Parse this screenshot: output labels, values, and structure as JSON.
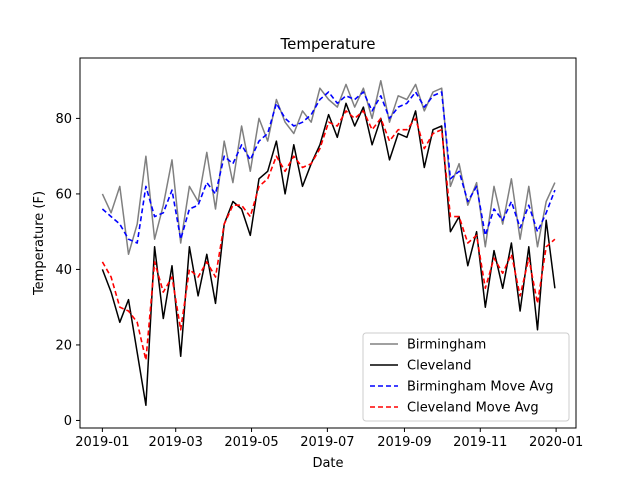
{
  "chart_data": {
    "type": "line",
    "title": "Temperature",
    "xlabel": "Date",
    "ylabel": "Temperature (F)",
    "x_ticks": [
      "2019-01",
      "2019-03",
      "2019-05",
      "2019-07",
      "2019-09",
      "2019-11",
      "2020-01"
    ],
    "y_ticks": [
      0,
      20,
      40,
      60,
      80
    ],
    "xlim": [
      "2018-12-14",
      "2020-01-17"
    ],
    "ylim": [
      -2,
      96
    ],
    "grid": false,
    "legend_position": "lower-right",
    "x": [
      "2019-01-01",
      "2019-01-08",
      "2019-01-15",
      "2019-01-22",
      "2019-01-29",
      "2019-02-05",
      "2019-02-12",
      "2019-02-19",
      "2019-02-26",
      "2019-03-05",
      "2019-03-12",
      "2019-03-19",
      "2019-03-26",
      "2019-04-02",
      "2019-04-09",
      "2019-04-16",
      "2019-04-23",
      "2019-04-30",
      "2019-05-07",
      "2019-05-14",
      "2019-05-21",
      "2019-05-28",
      "2019-06-04",
      "2019-06-11",
      "2019-06-18",
      "2019-06-25",
      "2019-07-02",
      "2019-07-09",
      "2019-07-16",
      "2019-07-23",
      "2019-07-30",
      "2019-08-06",
      "2019-08-13",
      "2019-08-20",
      "2019-08-27",
      "2019-09-03",
      "2019-09-10",
      "2019-09-17",
      "2019-09-24",
      "2019-10-01",
      "2019-10-08",
      "2019-10-15",
      "2019-10-22",
      "2019-10-29",
      "2019-11-05",
      "2019-11-12",
      "2019-11-19",
      "2019-11-26",
      "2019-12-03",
      "2019-12-10",
      "2019-12-17",
      "2019-12-24",
      "2019-12-31"
    ],
    "series": [
      {
        "name": "Birmingham",
        "color": "#808080",
        "style": "solid",
        "values": [
          60,
          55,
          62,
          44,
          52,
          70,
          48,
          57,
          69,
          47,
          62,
          58,
          71,
          56,
          74,
          63,
          78,
          66,
          80,
          74,
          85,
          79,
          76,
          82,
          79,
          88,
          85,
          83,
          89,
          83,
          88,
          80,
          90,
          79,
          86,
          85,
          89,
          82,
          87,
          88,
          62,
          68,
          57,
          63,
          46,
          62,
          52,
          64,
          48,
          62,
          46,
          58,
          63
        ]
      },
      {
        "name": "Cleveland",
        "color": "#000000",
        "style": "solid",
        "values": [
          40,
          34,
          26,
          32,
          18,
          4,
          46,
          27,
          41,
          17,
          46,
          33,
          44,
          31,
          52,
          58,
          56,
          49,
          64,
          66,
          74,
          60,
          73,
          62,
          68,
          73,
          81,
          75,
          84,
          78,
          83,
          73,
          80,
          69,
          76,
          75,
          82,
          67,
          77,
          78,
          50,
          54,
          41,
          50,
          30,
          45,
          35,
          47,
          29,
          46,
          24,
          53,
          35
        ]
      },
      {
        "name": "Birmingham Move Avg",
        "color": "#0000ff",
        "style": "dashed",
        "values": [
          56,
          54,
          52,
          48,
          47,
          62,
          54,
          55,
          61,
          48,
          56,
          57,
          63,
          60,
          70,
          68,
          73,
          69,
          74,
          76,
          84,
          80,
          78,
          79,
          81,
          85,
          87,
          84,
          86,
          85,
          87,
          82,
          86,
          80,
          83,
          84,
          87,
          83,
          86,
          87,
          64,
          66,
          58,
          62,
          49,
          56,
          53,
          58,
          51,
          57,
          50,
          55,
          61
        ]
      },
      {
        "name": "Cleveland Move Avg",
        "color": "#ff0000",
        "style": "dashed",
        "values": [
          42,
          38,
          30,
          29,
          26,
          16,
          42,
          34,
          38,
          24,
          40,
          38,
          42,
          38,
          52,
          57,
          57,
          54,
          62,
          64,
          70,
          66,
          70,
          67,
          68,
          72,
          79,
          78,
          82,
          80,
          82,
          77,
          80,
          74,
          77,
          77,
          80,
          72,
          76,
          77,
          54,
          54,
          47,
          49,
          35,
          43,
          39,
          44,
          33,
          43,
          31,
          46,
          48
        ]
      }
    ]
  }
}
